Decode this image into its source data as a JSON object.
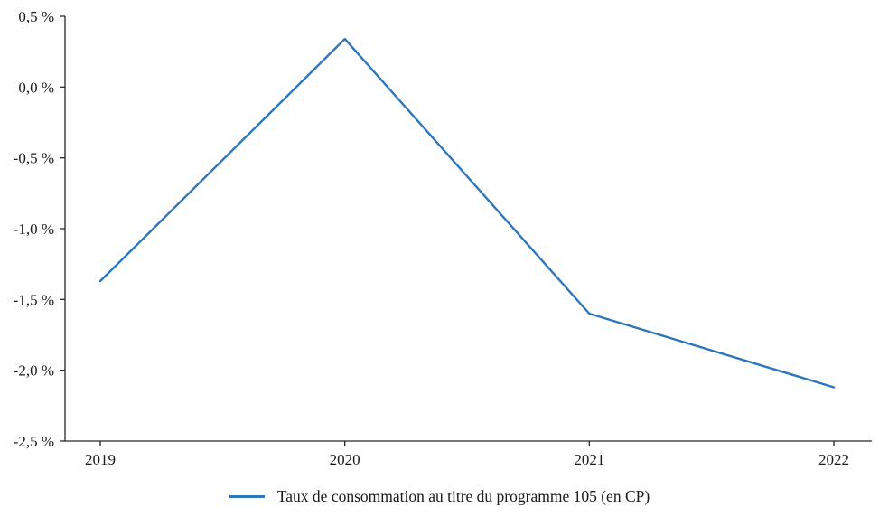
{
  "page": {
    "background": "#ffffff",
    "text_color": "#1a1a1a",
    "axis_color": "#262626"
  },
  "chart_data": {
    "type": "line",
    "title": "",
    "xlabel": "",
    "ylabel": "",
    "categories": [
      "2019",
      "2020",
      "2021",
      "2022"
    ],
    "series": [
      {
        "name": "Taux de consommation au titre du programme 105 (en CP)",
        "values": [
          -1.37,
          0.34,
          -1.6,
          -2.12
        ],
        "color": "#2e77bc"
      }
    ],
    "ylim": [
      -2.5,
      0.5
    ],
    "ytick_values": [
      0.5,
      0.0,
      -0.5,
      -1.0,
      -1.5,
      -2.0,
      -2.5
    ],
    "ytick_labels": [
      "0,5 %",
      "0,0 %",
      "-0,5 %",
      "-1,0 %",
      "-1,5 %",
      "-2,0 %",
      "-2,5 %"
    ],
    "grid": false,
    "legend_position": "bottom-center"
  }
}
